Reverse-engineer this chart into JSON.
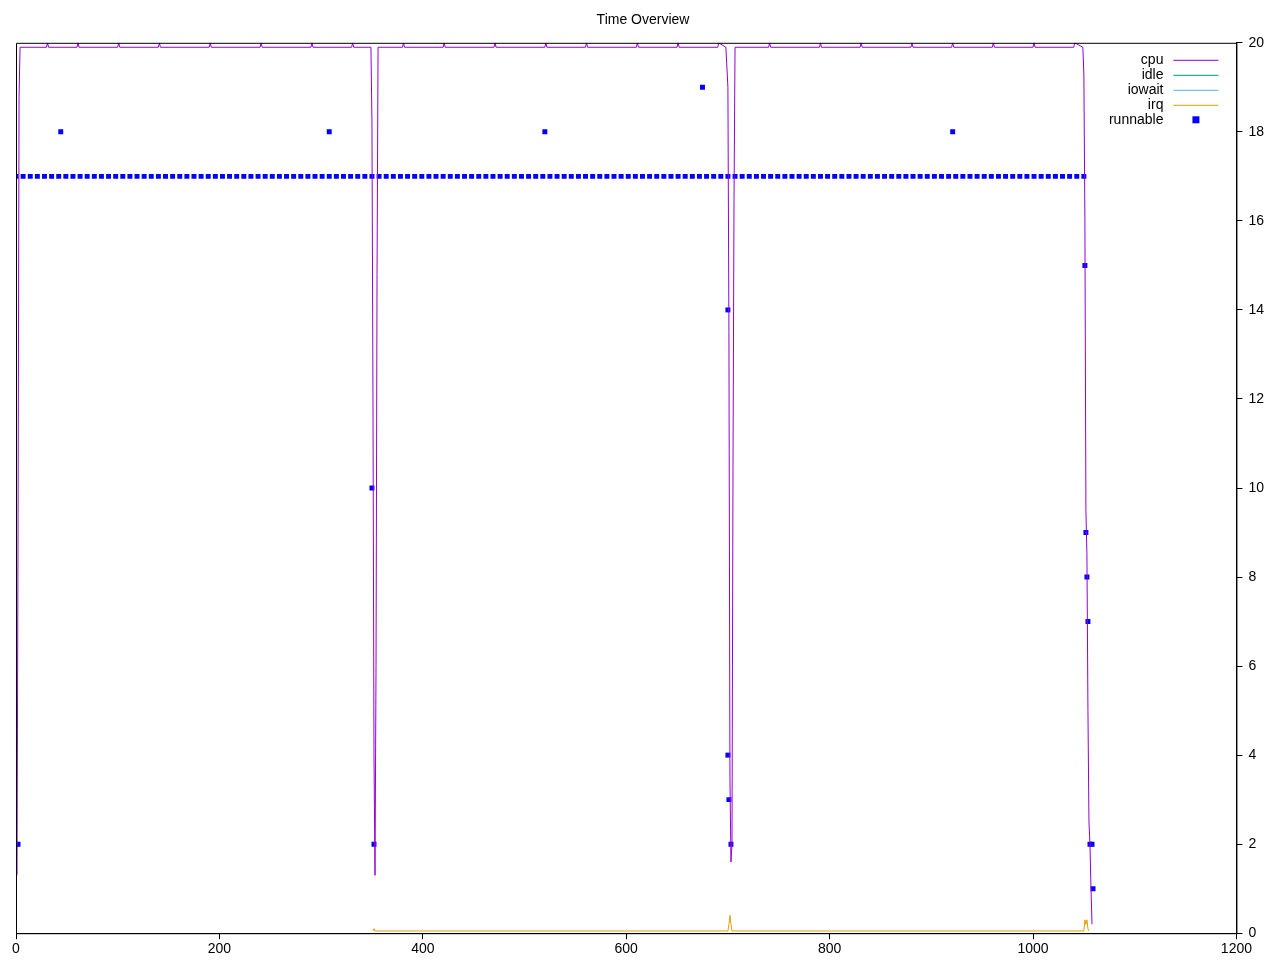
{
  "chart_data": {
    "type": "line",
    "title": "Time Overview",
    "xlim": [
      0,
      1200
    ],
    "xticks": [
      0,
      200,
      400,
      600,
      800,
      {
        "value": 1000,
        "label": "1000"
      },
      {
        "value": 1200,
        "label": "1200"
      }
    ],
    "ylim": [
      0,
      20
    ],
    "yticks": [
      0,
      2,
      4,
      6,
      8,
      10,
      12,
      14,
      16,
      18,
      20
    ],
    "grid": false,
    "legend": "top right",
    "series": [
      {
        "name": "cpu",
        "color": "#9400d3",
        "line_style": "solid",
        "marker": "none",
        "x": [
          1,
          2,
          3,
          4,
          30,
          31,
          32,
          60,
          61,
          62,
          100,
          101,
          102,
          140,
          141,
          142,
          190,
          191,
          192,
          240,
          241,
          242,
          290,
          291,
          292,
          330,
          331,
          332,
          349,
          350,
          351,
          352,
          353,
          354,
          355,
          356,
          380,
          381,
          382,
          420,
          421,
          422,
          470,
          471,
          472,
          520,
          521,
          522,
          560,
          561,
          562,
          610,
          611,
          612,
          650,
          651,
          652,
          690,
          691,
          698,
          700,
          701,
          702,
          703,
          704,
          705,
          706,
          707,
          740,
          741,
          742,
          790,
          791,
          792,
          830,
          831,
          832,
          880,
          881,
          882,
          920,
          921,
          922,
          960,
          961,
          962,
          1000,
          1001,
          1002,
          1040,
          1041,
          1049,
          1050,
          1051,
          1052,
          1053,
          1054,
          1055,
          1056,
          1057,
          1058
        ],
        "values": [
          1.3,
          9,
          18.8,
          19.9,
          19.9,
          20,
          19.9,
          19.9,
          20,
          19.9,
          19.9,
          20,
          19.9,
          19.9,
          20,
          19.9,
          19.9,
          20,
          19.9,
          19.9,
          20,
          19.9,
          19.9,
          20,
          19.9,
          19.9,
          20,
          19.9,
          19.9,
          18.2,
          12,
          4,
          1.3,
          6,
          14.8,
          19.9,
          19.9,
          20,
          19.9,
          19.9,
          20,
          19.9,
          19.9,
          20,
          19.9,
          19.9,
          20,
          19.9,
          19.9,
          20,
          19.9,
          19.9,
          20,
          19.9,
          19.9,
          20,
          19.9,
          19.9,
          20,
          19.9,
          19,
          13.5,
          3.5,
          1.6,
          2,
          10.5,
          16.5,
          19.9,
          19.9,
          20,
          19.9,
          19.9,
          20,
          19.9,
          19.9,
          20,
          19.9,
          19.9,
          20,
          19.9,
          19.9,
          20,
          19.9,
          19.9,
          20,
          19.9,
          19.9,
          20,
          19.9,
          19.9,
          20,
          19.9,
          19.3,
          16,
          9.5,
          8.5,
          5,
          2.5,
          2,
          1,
          0.2
        ]
      },
      {
        "name": "idle",
        "color": "#009e73",
        "line_style": "solid",
        "marker": "none"
      },
      {
        "name": "iowait",
        "color": "#56b4e9",
        "line_style": "solid",
        "marker": "none"
      },
      {
        "name": "irq",
        "color": "#e69f00",
        "line_style": "solid",
        "marker": "none",
        "x": [
          351,
          352,
          353,
          700,
          701,
          702,
          703,
          704,
          1050,
          1051,
          1052,
          1053,
          1054,
          1055
        ],
        "values": [
          0.05,
          0.1,
          0.05,
          0.05,
          0.2,
          0.4,
          0.2,
          0.05,
          0.05,
          0.3,
          0.2,
          0.3,
          0.1,
          0.05
        ]
      },
      {
        "name": "runnable",
        "type": "scatter",
        "color": "#0000ff",
        "marker": "square",
        "x": [
          0,
          7,
          14,
          21,
          28,
          35,
          42,
          49,
          56,
          63,
          70,
          77,
          84,
          91,
          98,
          105,
          112,
          119,
          126,
          133,
          140,
          147,
          154,
          161,
          168,
          175,
          182,
          189,
          196,
          203,
          210,
          217,
          224,
          231,
          238,
          245,
          252,
          259,
          266,
          273,
          280,
          287,
          294,
          301,
          308,
          315,
          322,
          329,
          336,
          343,
          350,
          357,
          364,
          371,
          378,
          385,
          392,
          399,
          406,
          413,
          420,
          427,
          434,
          441,
          448,
          455,
          462,
          469,
          476,
          483,
          490,
          497,
          504,
          511,
          518,
          525,
          532,
          539,
          546,
          553,
          560,
          567,
          574,
          581,
          588,
          595,
          602,
          609,
          616,
          623,
          630,
          637,
          644,
          651,
          658,
          665,
          672,
          679,
          686,
          693,
          700,
          707,
          714,
          721,
          728,
          735,
          742,
          749,
          756,
          763,
          770,
          777,
          784,
          791,
          798,
          805,
          812,
          819,
          826,
          833,
          840,
          847,
          854,
          861,
          868,
          875,
          882,
          889,
          896,
          903,
          910,
          917,
          924,
          931,
          938,
          945,
          952,
          959,
          966,
          973,
          980,
          987,
          994,
          1001,
          1008,
          1015,
          1022,
          1029,
          1036,
          1043,
          1050,
          0,
          2,
          44,
          308,
          350,
          352,
          520,
          675,
          700,
          700,
          701,
          703,
          921,
          1051,
          1052,
          1053,
          1054,
          1056,
          1058,
          1059
        ],
        "values": [
          17,
          17,
          17,
          17,
          17,
          17,
          17,
          17,
          17,
          17,
          17,
          17,
          17,
          17,
          17,
          17,
          17,
          17,
          17,
          17,
          17,
          17,
          17,
          17,
          17,
          17,
          17,
          17,
          17,
          17,
          17,
          17,
          17,
          17,
          17,
          17,
          17,
          17,
          17,
          17,
          17,
          17,
          17,
          17,
          17,
          17,
          17,
          17,
          17,
          17,
          17,
          17,
          17,
          17,
          17,
          17,
          17,
          17,
          17,
          17,
          17,
          17,
          17,
          17,
          17,
          17,
          17,
          17,
          17,
          17,
          17,
          17,
          17,
          17,
          17,
          17,
          17,
          17,
          17,
          17,
          17,
          17,
          17,
          17,
          17,
          17,
          17,
          17,
          17,
          17,
          17,
          17,
          17,
          17,
          17,
          17,
          17,
          17,
          17,
          17,
          17,
          17,
          17,
          17,
          17,
          17,
          17,
          17,
          17,
          17,
          17,
          17,
          17,
          17,
          17,
          17,
          17,
          17,
          17,
          17,
          17,
          17,
          17,
          17,
          17,
          17,
          17,
          17,
          17,
          17,
          17,
          17,
          17,
          17,
          17,
          17,
          17,
          17,
          17,
          17,
          17,
          17,
          17,
          17,
          17,
          17,
          17,
          17,
          17,
          17,
          17,
          2,
          2,
          18,
          18,
          10,
          2,
          18,
          19,
          14,
          4,
          3,
          2,
          18,
          15,
          9,
          8,
          7,
          2,
          2,
          1
        ]
      }
    ]
  }
}
